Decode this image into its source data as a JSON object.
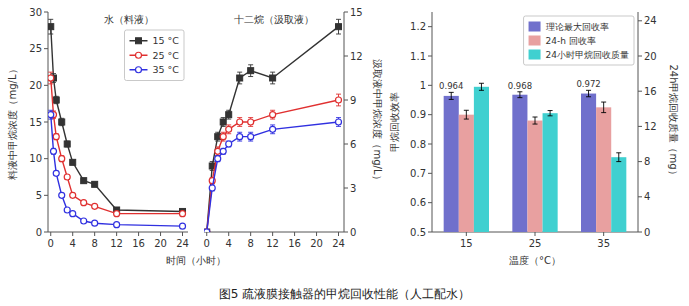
{
  "chart_data": [
    {
      "type": "line",
      "title": "水（料液）",
      "xlabel": "时间（小时）",
      "ylabel": "料液中甲烷浓度（mg/L）",
      "caption": "图5 疏液膜接触器的甲烷回收性能（人工配水）",
      "x": [
        0,
        0.5,
        1,
        2,
        3,
        4,
        6,
        8,
        12,
        24
      ],
      "xlim": [
        -0.5,
        25
      ],
      "xticks": [
        0,
        4,
        8,
        12,
        16,
        20,
        24
      ],
      "ylim": [
        0,
        30
      ],
      "yticks": [
        0,
        5,
        10,
        15,
        20,
        25,
        30
      ],
      "legend": "upper right",
      "series": [
        {
          "name": "15 °C",
          "color": "#333333",
          "marker": "square",
          "values": [
            28.0,
            21.0,
            18.0,
            15.0,
            12.0,
            9.5,
            7.0,
            6.5,
            3.0,
            2.8
          ],
          "error": [
            1.0,
            0.6,
            0.5,
            0.5,
            0.4,
            0.3,
            0.3,
            0.3,
            0.2,
            0.2
          ]
        },
        {
          "name": "25 °C",
          "color": "#e03030",
          "marker": "circle",
          "values": [
            21.0,
            16.0,
            13.0,
            10.0,
            7.5,
            5.0,
            4.0,
            3.5,
            2.5,
            2.5
          ],
          "error": [
            0.8,
            0.5,
            0.4,
            0.4,
            0.3,
            0.3,
            0.2,
            0.2,
            0.2,
            0.2
          ]
        },
        {
          "name": "35 °C",
          "color": "#3030e0",
          "marker": "circle",
          "values": [
            16.0,
            11.0,
            8.0,
            5.0,
            3.0,
            2.5,
            1.5,
            1.2,
            1.0,
            0.8
          ],
          "error": [
            0.6,
            0.4,
            0.3,
            0.3,
            0.2,
            0.2,
            0.2,
            0.2,
            0.1,
            0.1
          ]
        }
      ]
    },
    {
      "type": "line",
      "title": "十二烷（汲取液）",
      "ylabel": "汲取液中甲烷浓度（mg/L）",
      "x": [
        0,
        1,
        2,
        3,
        4,
        6,
        8,
        12,
        24
      ],
      "xlim": [
        -0.5,
        25
      ],
      "xticks": [
        0,
        4,
        8,
        12,
        16,
        20,
        24
      ],
      "ylim": [
        0,
        15
      ],
      "yticks": [
        0,
        3,
        6,
        9,
        12,
        15
      ],
      "series": [
        {
          "color": "#333333",
          "marker": "square",
          "values": [
            0.0,
            4.5,
            6.5,
            7.5,
            8.0,
            10.5,
            11.0,
            10.5,
            14.0
          ],
          "error": [
            0.0,
            0.3,
            0.3,
            0.3,
            0.3,
            0.4,
            0.4,
            0.4,
            0.5
          ]
        },
        {
          "color": "#e03030",
          "marker": "circle",
          "values": [
            0.0,
            3.5,
            5.5,
            6.5,
            7.0,
            7.5,
            7.5,
            8.0,
            9.0
          ],
          "error": [
            0.0,
            0.2,
            0.3,
            0.3,
            0.3,
            0.3,
            0.3,
            0.3,
            0.4
          ]
        },
        {
          "color": "#3030e0",
          "marker": "circle",
          "values": [
            0.0,
            3.0,
            5.0,
            5.5,
            6.0,
            6.5,
            6.5,
            7.0,
            7.5
          ],
          "error": [
            0.0,
            0.2,
            0.2,
            0.2,
            0.2,
            0.3,
            0.3,
            0.3,
            0.3
          ]
        }
      ]
    },
    {
      "type": "bar",
      "categories": [
        "15",
        "25",
        "35"
      ],
      "xlabel": "温度（°C）",
      "ylabel": "甲烷回收效率",
      "y2label": "24h甲烷回收质量（mg）",
      "ylim": [
        0.5,
        1.25
      ],
      "yticks": [
        0.5,
        0.6,
        0.7,
        0.8,
        0.9,
        1.0,
        1.1,
        1.2
      ],
      "y2lim": [
        0,
        25
      ],
      "y2ticks": [
        0,
        4,
        8,
        12,
        16,
        20,
        24
      ],
      "legend": "upper right",
      "series": [
        {
          "name": "理论最大回收率",
          "color": "#7070cc",
          "values": [
            0.964,
            0.968,
            0.972
          ],
          "error": [
            0.012,
            0.01,
            0.011
          ],
          "data_labels": true
        },
        {
          "name": "24-h 回收率",
          "color": "#e8a0a0",
          "values": [
            0.9,
            0.88,
            0.925
          ],
          "error": [
            0.015,
            0.012,
            0.018
          ]
        },
        {
          "name": "24小时甲烷回收质量",
          "color": "#40d0d0",
          "axis": "y2",
          "values": [
            16.5,
            13.5,
            8.5
          ],
          "error": [
            0.4,
            0.3,
            0.5
          ]
        }
      ]
    }
  ]
}
